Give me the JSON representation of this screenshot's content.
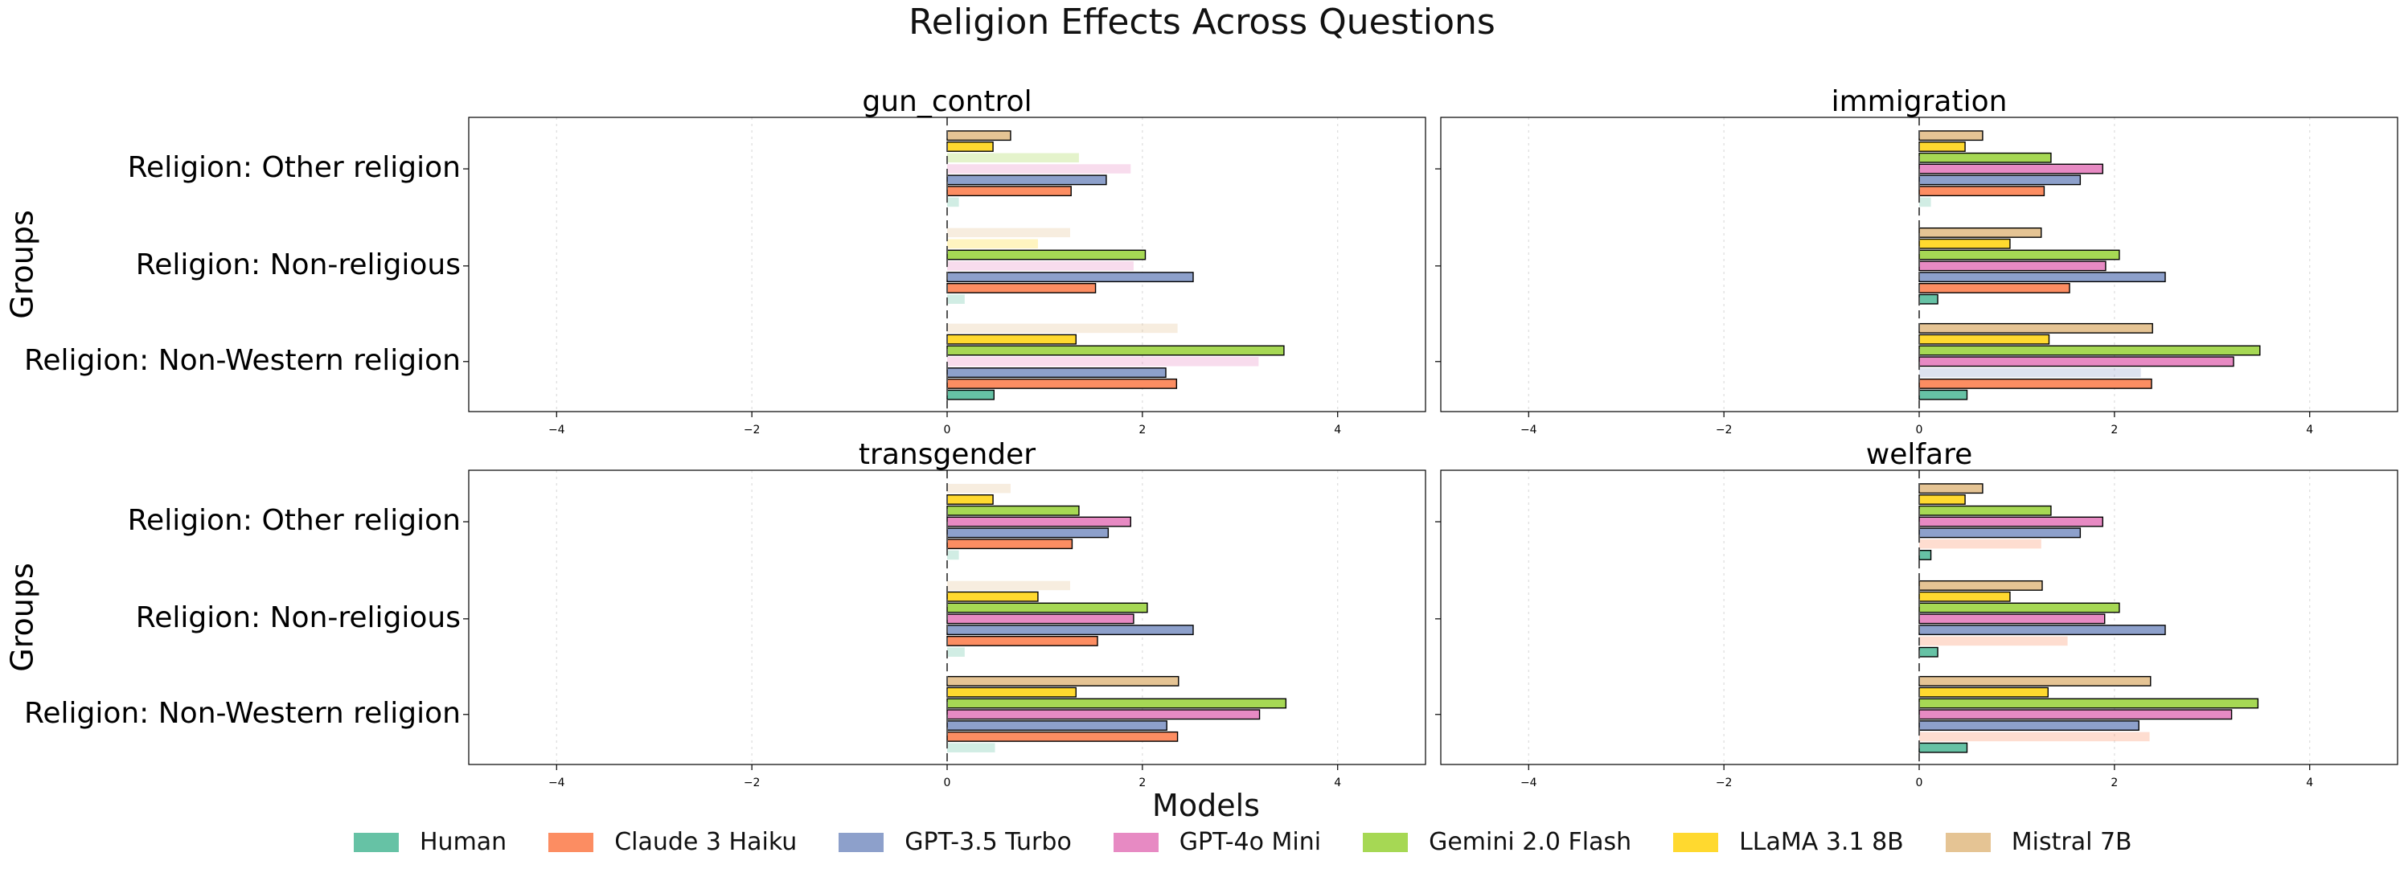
{
  "chart_data": {
    "type": "bar",
    "title": "Religion Effects Across Questions",
    "xlabel": "Models",
    "ylabel": "Groups",
    "xlim": [
      -4.9,
      4.9
    ],
    "xticks": [
      -4,
      -2,
      0,
      2,
      4
    ],
    "xtick_labels": [
      "−4",
      "−2",
      "0",
      "2",
      "4"
    ],
    "grid": "x, dotted",
    "legend_position": "bottom",
    "groups": [
      "Religion: Other religion",
      "Religion: Non-religious",
      "Religion: Non-Western religion"
    ],
    "series": [
      {
        "name": "Human",
        "color": "#66c2a5"
      },
      {
        "name": "Claude 3 Haiku",
        "color": "#fc8d62"
      },
      {
        "name": "GPT-3.5 Turbo",
        "color": "#8da0cb"
      },
      {
        "name": "GPT-4o Mini",
        "color": "#e78ac3"
      },
      {
        "name": "Gemini 2.0 Flash",
        "color": "#a6d854"
      },
      {
        "name": "LLaMA 3.1 8B",
        "color": "#ffd92f"
      },
      {
        "name": "Mistral 7B",
        "color": "#e5c494"
      }
    ],
    "panels": [
      {
        "title": "gun_control",
        "values": [
          [
            0.12,
            1.27,
            1.63,
            1.88,
            1.35,
            0.47,
            0.65
          ],
          [
            0.18,
            1.52,
            2.52,
            1.91,
            2.03,
            0.93,
            1.26
          ],
          [
            0.48,
            2.35,
            2.24,
            3.19,
            3.45,
            1.32,
            2.36
          ]
        ],
        "significant": [
          [
            false,
            true,
            true,
            false,
            false,
            true,
            true
          ],
          [
            false,
            true,
            true,
            false,
            true,
            false,
            false
          ],
          [
            true,
            true,
            true,
            false,
            true,
            true,
            false
          ]
        ]
      },
      {
        "title": "immigration",
        "values": [
          [
            0.12,
            1.28,
            1.65,
            1.88,
            1.35,
            0.47,
            0.65
          ],
          [
            0.19,
            1.54,
            2.52,
            1.91,
            2.05,
            0.93,
            1.25
          ],
          [
            0.49,
            2.38,
            2.27,
            3.22,
            3.49,
            1.33,
            2.39
          ]
        ],
        "significant": [
          [
            false,
            true,
            true,
            true,
            true,
            true,
            true
          ],
          [
            true,
            true,
            true,
            true,
            true,
            true,
            true
          ],
          [
            true,
            true,
            false,
            true,
            true,
            true,
            true
          ]
        ]
      },
      {
        "title": "transgender",
        "values": [
          [
            0.12,
            1.28,
            1.65,
            1.88,
            1.35,
            0.47,
            0.65
          ],
          [
            0.18,
            1.54,
            2.52,
            1.91,
            2.05,
            0.93,
            1.26
          ],
          [
            0.49,
            2.36,
            2.25,
            3.2,
            3.47,
            1.32,
            2.37
          ]
        ],
        "significant": [
          [
            false,
            true,
            true,
            true,
            true,
            true,
            false
          ],
          [
            false,
            true,
            true,
            true,
            true,
            true,
            false
          ],
          [
            false,
            true,
            true,
            true,
            true,
            true,
            true
          ]
        ]
      },
      {
        "title": "welfare",
        "values": [
          [
            0.12,
            1.25,
            1.65,
            1.88,
            1.35,
            0.47,
            0.65
          ],
          [
            0.19,
            1.52,
            2.52,
            1.9,
            2.05,
            0.93,
            1.26
          ],
          [
            0.49,
            2.36,
            2.25,
            3.2,
            3.47,
            1.32,
            2.37
          ]
        ],
        "significant": [
          [
            true,
            false,
            true,
            true,
            true,
            true,
            true
          ],
          [
            true,
            false,
            true,
            true,
            true,
            true,
            true
          ],
          [
            true,
            false,
            true,
            true,
            true,
            true,
            true
          ]
        ]
      }
    ]
  }
}
